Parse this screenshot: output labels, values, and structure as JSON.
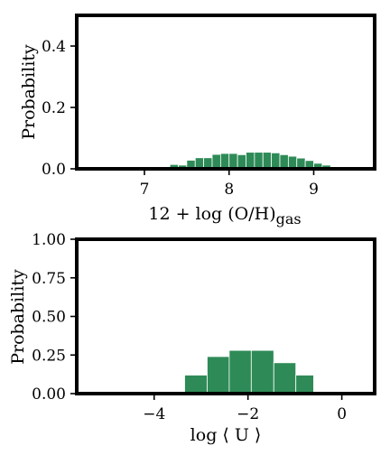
{
  "colors": {
    "bar_fill": "#2e8b57",
    "frame": "#000000",
    "background": "#ffffff"
  },
  "chart_data": [
    {
      "type": "bar",
      "panel": "top",
      "title": "",
      "xlabel": "12 + log (O/H)",
      "xlabel_subscript": "gas",
      "ylabel": "Probability",
      "xlim": [
        6.2,
        9.72
      ],
      "ylim": [
        0,
        0.5
      ],
      "xticks": [
        7,
        8,
        9
      ],
      "xtick_labels": [
        "7",
        "8",
        "9"
      ],
      "yticks": [
        0.0,
        0.2,
        0.4
      ],
      "ytick_labels": [
        "0.0",
        "0.2",
        "0.4"
      ],
      "grid": false,
      "bin_edges": [
        7.2,
        7.3,
        7.4,
        7.5,
        7.6,
        7.7,
        7.8,
        7.9,
        8.0,
        8.1,
        8.2,
        8.3,
        8.4,
        8.5,
        8.6,
        8.7,
        8.8,
        8.9,
        9.0,
        9.1,
        9.2,
        9.3
      ],
      "values": [
        0.006,
        0.014,
        0.012,
        0.028,
        0.036,
        0.036,
        0.047,
        0.05,
        0.05,
        0.046,
        0.054,
        0.054,
        0.054,
        0.052,
        0.046,
        0.041,
        0.035,
        0.027,
        0.018,
        0.012,
        0.006
      ]
    },
    {
      "type": "bar",
      "panel": "bottom",
      "title": "",
      "xlabel": "log ⟨ U ⟩",
      "ylabel": "Probability",
      "xlim": [
        -5.65,
        0.7
      ],
      "ylim": [
        0,
        1.0
      ],
      "xticks": [
        -4,
        -2,
        0
      ],
      "xtick_labels": [
        "−4",
        "−2",
        "0"
      ],
      "yticks": [
        0.0,
        0.25,
        0.5,
        0.75,
        1.0
      ],
      "ytick_labels": [
        "0.00",
        "0.25",
        "0.50",
        "0.75",
        "1.00"
      ],
      "grid": false,
      "bin_edges": [
        -3.35,
        -2.87,
        -2.4,
        -1.93,
        -1.45,
        -0.98,
        -0.6
      ],
      "values": [
        0.12,
        0.24,
        0.28,
        0.28,
        0.2,
        0.12
      ]
    }
  ]
}
